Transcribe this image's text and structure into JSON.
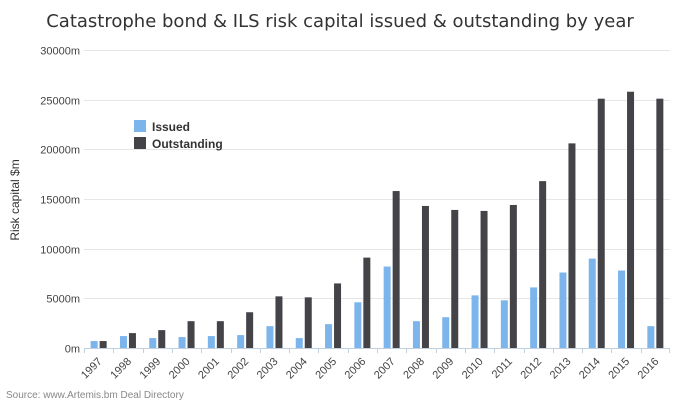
{
  "chart_data": {
    "type": "bar",
    "title": "Catastrophe bond & ILS risk capital issued & outstanding by year",
    "ylabel": "Risk capital $m",
    "xlabel": "",
    "source": "Source: www.Artemis.bm Deal Directory",
    "ylim": [
      0,
      30000
    ],
    "yticks": [
      0,
      5000,
      10000,
      15000,
      20000,
      25000,
      30000
    ],
    "ytick_labels": [
      "0m",
      "5000m",
      "10000m",
      "15000m",
      "20000m",
      "25000m",
      "30000m"
    ],
    "grid": true,
    "legend_position": "top-left",
    "categories": [
      "1997",
      "1998",
      "1999",
      "2000",
      "2001",
      "2002",
      "2003",
      "2004",
      "2005",
      "2006",
      "2007",
      "2008",
      "2009",
      "2010",
      "2011",
      "2012",
      "2013",
      "2014",
      "2015",
      "2016"
    ],
    "series": [
      {
        "name": "Issued",
        "color": "#7cb5ec",
        "values": [
          700,
          1200,
          1000,
          1100,
          1200,
          1300,
          2200,
          1000,
          2400,
          4600,
          8200,
          2700,
          3100,
          5300,
          4800,
          6100,
          7600,
          9000,
          7800,
          2200
        ]
      },
      {
        "name": "Outstanding",
        "color": "#434348",
        "values": [
          700,
          1500,
          1800,
          2700,
          2700,
          3600,
          5200,
          5100,
          6500,
          9100,
          15800,
          14300,
          13900,
          13800,
          14400,
          16800,
          20600,
          25100,
          25800,
          25100
        ]
      }
    ]
  }
}
